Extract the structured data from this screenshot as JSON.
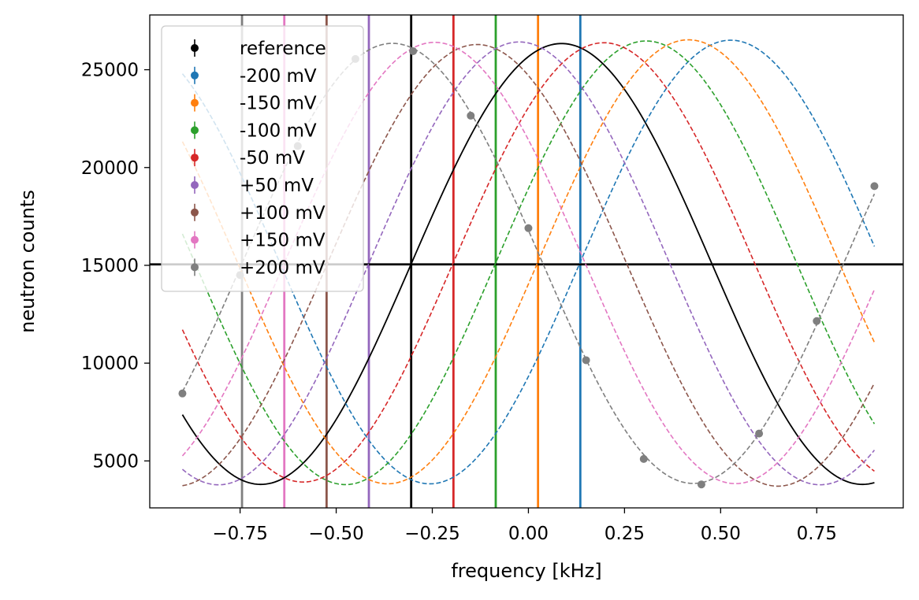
{
  "chart_data": {
    "type": "line",
    "title": "",
    "xlabel": "frequency [kHz]",
    "ylabel": "neutron counts",
    "xlim": [
      -0.985,
      0.975
    ],
    "ylim": [
      2600,
      27800
    ],
    "xticks": [
      -0.75,
      -0.5,
      -0.25,
      0.0,
      0.25,
      0.5,
      0.75
    ],
    "xtick_labels": [
      "−0.75",
      "−0.50",
      "−0.25",
      "0.00",
      "0.25",
      "0.50",
      "0.75"
    ],
    "yticks": [
      5000,
      10000,
      15000,
      20000,
      25000
    ],
    "ytick_labels": [
      "5000",
      "10000",
      "15000",
      "20000",
      "25000"
    ],
    "grid": false,
    "legend_position": "upper-left",
    "hline": 15050,
    "model": {
      "xmin": -0.9,
      "xmax": 0.9
    },
    "series": [
      {
        "name": "reference",
        "color": "#000000",
        "dashed": false,
        "zero_crossing": -0.305,
        "period": 1.565,
        "mean": 15070,
        "amplitude": 11270
      },
      {
        "name": "-200 mV",
        "color": "#1f77b4",
        "dashed": true,
        "zero_crossing": 0.135,
        "period": 1.565,
        "mean": 15170,
        "amplitude": 11340
      },
      {
        "name": "-150 mV",
        "color": "#ff7f0e",
        "dashed": true,
        "zero_crossing": 0.025,
        "period": 1.565,
        "mean": 15180,
        "amplitude": 11350
      },
      {
        "name": "-100 mV",
        "color": "#2ca02c",
        "dashed": true,
        "zero_crossing": -0.085,
        "period": 1.565,
        "mean": 15130,
        "amplitude": 11340
      },
      {
        "name": "-50 mV",
        "color": "#d62728",
        "dashed": true,
        "zero_crossing": -0.195,
        "period": 1.565,
        "mean": 15150,
        "amplitude": 11230
      },
      {
        "name": "+50 mV",
        "color": "#9467bd",
        "dashed": true,
        "zero_crossing": -0.415,
        "period": 1.565,
        "mean": 15100,
        "amplitude": 11320
      },
      {
        "name": "+100 mV",
        "color": "#8c564b",
        "dashed": true,
        "zero_crossing": -0.525,
        "period": 1.565,
        "mean": 15000,
        "amplitude": 11290
      },
      {
        "name": "+150 mV",
        "color": "#e377c2",
        "dashed": true,
        "zero_crossing": -0.635,
        "period": 1.565,
        "mean": 15120,
        "amplitude": 11280
      },
      {
        "name": "+200 mV",
        "color": "#7f7f7f",
        "dashed": true,
        "zero_crossing": -0.745,
        "period": 1.565,
        "mean": 15100,
        "amplitude": 11250,
        "points": [
          {
            "x": -0.9,
            "y": 8450
          },
          {
            "x": -0.75,
            "y": 14500
          },
          {
            "x": -0.6,
            "y": 21100
          },
          {
            "x": -0.45,
            "y": 25550
          },
          {
            "x": -0.3,
            "y": 25950
          },
          {
            "x": -0.15,
            "y": 22650
          },
          {
            "x": 0.0,
            "y": 16900
          },
          {
            "x": 0.15,
            "y": 10150
          },
          {
            "x": 0.3,
            "y": 5100
          },
          {
            "x": 0.45,
            "y": 3800
          },
          {
            "x": 0.6,
            "y": 6400
          },
          {
            "x": 0.75,
            "y": 12150
          },
          {
            "x": 0.9,
            "y": 19050
          }
        ]
      }
    ]
  }
}
